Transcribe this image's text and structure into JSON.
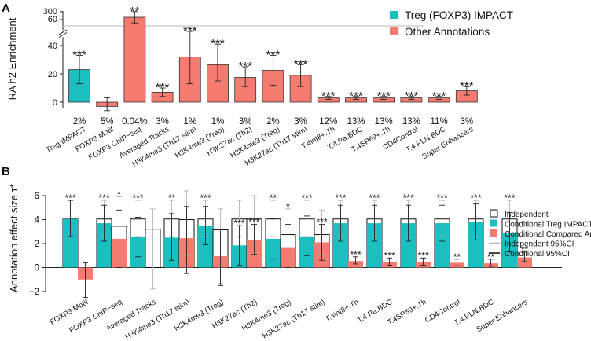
{
  "colors": {
    "treg": "#1cbfbf",
    "other": "#f57a70",
    "axis": "#222222",
    "refline": "#b8b8b8",
    "hollow": "#ffffff"
  },
  "chart_data": [
    {
      "panel_label": "A",
      "type": "bar",
      "ylabel": "RA h2 Enrichment",
      "ylim": [
        0,
        60
      ],
      "y_ticks": [
        "0",
        "20",
        "40"
      ],
      "y_ticks_broken": [
        "60",
        "300"
      ],
      "legend": [
        {
          "label": "Treg (FOXP3) IMPACT",
          "color_key": "treg"
        },
        {
          "label": "Other Annotations",
          "color_key": "other"
        }
      ],
      "legend_position": "top-right",
      "categories": [
        "Treg IMPACT",
        "FOXP3 Motif",
        "FOXP3 ChIP−seq",
        "Averaged Tracks",
        "H3K4me3 (Th17 stim)",
        "H3K4me3 (Treg)",
        "H3K27ac (Th2)",
        "H3K4me3 (Treg)",
        "H3K27ac (Th17 stim)",
        "T.4int8+.Th",
        "T.4.Pa.BDC",
        "T.4SP69+.Th",
        "CD4Control",
        "T.4.PLN.BDC",
        "Super Enhancers"
      ],
      "values": [
        23,
        -3,
        60,
        7,
        32,
        26.5,
        17.5,
        22.5,
        19,
        3,
        3,
        3,
        3,
        3,
        8
      ],
      "error_low": [
        13,
        -6,
        56,
        4,
        13,
        15,
        11,
        12,
        11,
        2,
        2,
        2,
        2,
        2,
        5
      ],
      "error_high": [
        33,
        3,
        64,
        10,
        50,
        41,
        25,
        33,
        26.5,
        4,
        4,
        4,
        4,
        4,
        11
      ],
      "bar_color_keys": [
        "treg",
        "other",
        "other",
        "other",
        "other",
        "other",
        "other",
        "other",
        "other",
        "other",
        "other",
        "other",
        "other",
        "other",
        "other"
      ],
      "significance": [
        "***",
        "",
        "**",
        "***",
        "***",
        "***",
        "***",
        "***",
        "***",
        "***",
        "***",
        "***",
        "***",
        "***",
        "***"
      ],
      "annotation_percent": [
        "2%",
        "5%",
        "0.04%",
        "3%",
        "1%",
        "1%",
        "3%",
        "2%",
        "3%",
        "12%",
        "13%",
        "13%",
        "13%",
        "11%",
        "3%"
      ]
    },
    {
      "panel_label": "B",
      "type": "bar",
      "ylabel": "Annotation effect size τ*",
      "ylim": [
        -2,
        6
      ],
      "y_ticks": [
        "−2",
        "0",
        "2",
        "4",
        "6"
      ],
      "legend": [
        {
          "label": "Independent",
          "style": "hollow"
        },
        {
          "label": "Conditional Treg IMPACT",
          "color_key": "treg"
        },
        {
          "label": "Conditional Compared Annotation",
          "color_key": "other"
        },
        {
          "label": "Independent 95%CI",
          "style": "grey-line"
        },
        {
          "label": "Conditional 95%CI",
          "style": "black-line"
        }
      ],
      "legend_position": "right",
      "categories": [
        "FOXP3 Motif",
        "FOXP3 ChIP−seq",
        "Averaged Tracks",
        "H3K4me3 (Th17 stim)",
        "H3K4me3 (Treg)",
        "H3K27ac (Th2)",
        "H3K4me3 (Treg)",
        "H3K27ac (Th17 stim)",
        "T.4int8+.Th",
        "T.4.Pa.BDC",
        "T.4SP69+.Th",
        "CD4Control",
        "T.4.PLN.BDC",
        "Super Enhancers"
      ],
      "series": [
        {
          "name": "Independent Treg IMPACT",
          "values": [
            4.05,
            4.05,
            4.05,
            4.05,
            4.05,
            4.05,
            4.05,
            4.05,
            4.05,
            4.05,
            4.05,
            4.05,
            4.05,
            4.05
          ],
          "ci_low": [
            2.6,
            2.6,
            2.6,
            2.6,
            2.6,
            2.6,
            2.6,
            2.6,
            2.6,
            2.6,
            2.6,
            2.6,
            2.6,
            2.6
          ],
          "ci_high": [
            5.6,
            5.6,
            5.6,
            5.6,
            5.6,
            5.6,
            5.6,
            5.6,
            5.6,
            5.6,
            5.6,
            5.6,
            5.6,
            5.6
          ],
          "stars": [
            "***",
            "***",
            "***",
            "**",
            "***",
            "",
            "**",
            "***",
            "***",
            "***",
            "***",
            "***",
            "***",
            "***"
          ]
        },
        {
          "name": "Conditional Treg IMPACT",
          "values": [
            4.05,
            3.7,
            2.55,
            2.5,
            3.45,
            1.85,
            2.4,
            2.6,
            3.7,
            3.7,
            3.7,
            3.7,
            3.8,
            2.9
          ],
          "ci_low": [
            2.6,
            2.2,
            0.9,
            0.6,
            1.9,
            0.2,
            0.7,
            1.0,
            2.2,
            2.2,
            2.2,
            2.2,
            2.3,
            1.3
          ],
          "ci_high": [
            5.6,
            5.2,
            4.2,
            4.5,
            5.1,
            3.5,
            4.1,
            4.3,
            5.2,
            5.2,
            5.2,
            5.2,
            5.3,
            4.6
          ],
          "stars": [
            "",
            "",
            "",
            "",
            "",
            "***",
            "",
            "",
            "",
            "",
            "",
            "",
            "",
            ""
          ]
        },
        {
          "name": "Independent compared annotation",
          "values": [
            null,
            3.45,
            3.2,
            4.0,
            3.15,
            4.05,
            2.75,
            2.75,
            null,
            null,
            null,
            null,
            null,
            null
          ],
          "ci_low": [
            null,
            0.7,
            -1.8,
            1.0,
            -1.3,
            1.2,
            0.7,
            1.0,
            null,
            null,
            null,
            null,
            null,
            null
          ],
          "ci_high": [
            null,
            5.9,
            4.9,
            6.4,
            4.9,
            6.0,
            4.9,
            4.8,
            null,
            null,
            null,
            null,
            null,
            null
          ],
          "stars": [
            "",
            "*",
            "",
            "",
            "",
            "",
            "*",
            "",
            "",
            "",
            "",
            "",
            "",
            ""
          ]
        },
        {
          "name": "Conditional Compared Annotation",
          "values": [
            -1.0,
            2.4,
            null,
            2.45,
            0.95,
            2.3,
            1.7,
            2.1,
            0.55,
            0.45,
            0.45,
            0.4,
            0.35,
            0.85
          ],
          "ci_low": [
            -2.5,
            0.0,
            null,
            -0.5,
            -1.5,
            1.1,
            0.0,
            0.6,
            0.3,
            0.2,
            0.2,
            0.15,
            0.1,
            0.5
          ],
          "ci_high": [
            0.4,
            4.8,
            null,
            5.1,
            3.2,
            3.6,
            3.6,
            3.6,
            0.9,
            0.8,
            0.8,
            0.7,
            0.7,
            1.3
          ],
          "stars": [
            "",
            "",
            "",
            "",
            "",
            "***",
            "",
            "***",
            "***",
            "***",
            "***",
            "**",
            "**",
            "**"
          ]
        }
      ]
    }
  ]
}
